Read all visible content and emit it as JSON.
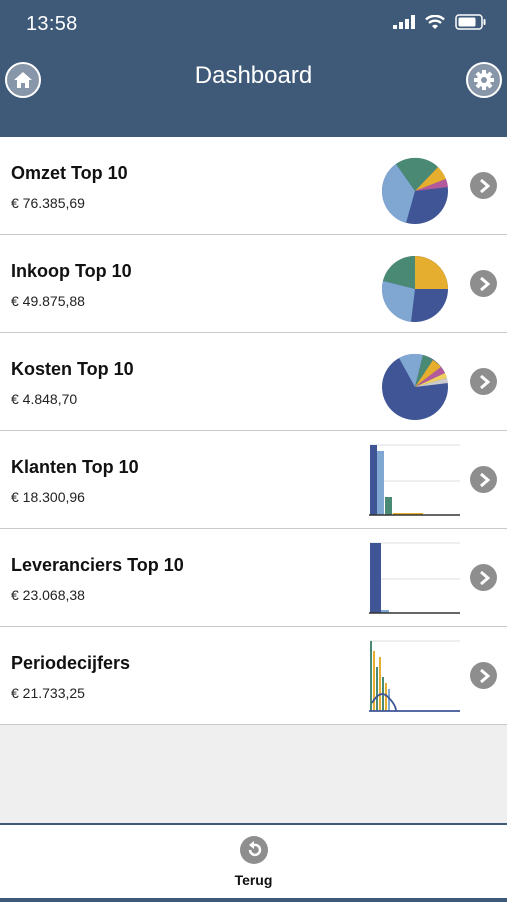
{
  "status_bar": {
    "time": "13:58"
  },
  "header": {
    "title": "Dashboard"
  },
  "icons": {
    "home": "home-icon",
    "settings": "gear-icon",
    "chevron": "chevron-right-icon",
    "back": "undo-icon"
  },
  "colors": {
    "header_bg": "#3f5a78",
    "dark_blue": "#3f5596",
    "light_blue": "#7fa7d2",
    "green": "#4a8a74",
    "yellow": "#e6ae2f",
    "pink": "#b25a9c",
    "gray": "#8e8e8e"
  },
  "items": [
    {
      "title": "Omzet Top 10",
      "value": "€ 76.385,69",
      "chart": "pie"
    },
    {
      "title": "Inkoop Top 10",
      "value": "€ 49.875,88",
      "chart": "pie"
    },
    {
      "title": "Kosten Top 10",
      "value": "€ 4.848,70",
      "chart": "pie"
    },
    {
      "title": "Klanten Top 10",
      "value": "€ 18.300,96",
      "chart": "bar"
    },
    {
      "title": "Leveranciers Top 10",
      "value": "€ 23.068,38",
      "chart": "bar"
    },
    {
      "title": "Periodecijfers",
      "value": "€ 21.733,25",
      "chart": "bar-line"
    }
  ],
  "footer": {
    "back_label": "Terug"
  }
}
